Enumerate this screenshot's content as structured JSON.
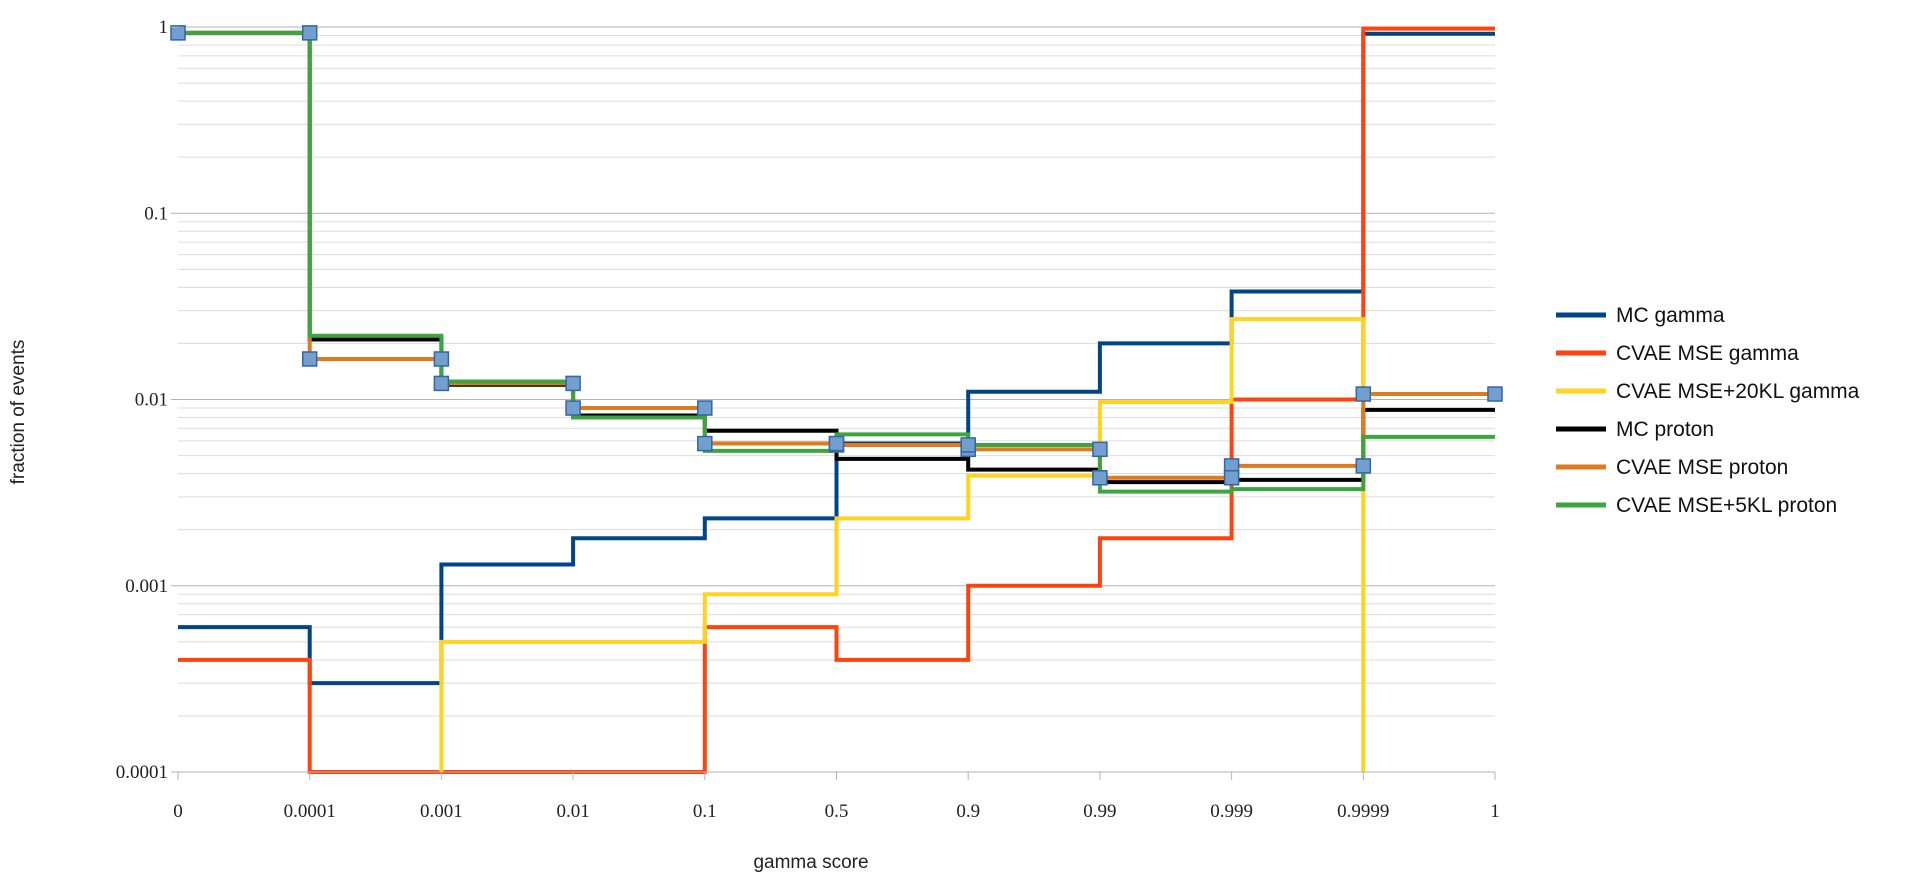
{
  "chart_data": {
    "type": "line",
    "step": "post",
    "xlabel": "gamma score",
    "ylabel": "fraction of events",
    "x_categories": [
      "0",
      "0.0001",
      "0.001",
      "0.01",
      "0.1",
      "0.5",
      "0.9",
      "0.99",
      "0.999",
      "0.9999",
      "1"
    ],
    "yscale": "log",
    "ylim": [
      0.0001,
      1
    ],
    "y_ticks": [
      "0.0001",
      "0.001",
      "0.01",
      "0.1",
      "1"
    ],
    "grid": true,
    "legend_position": "right",
    "series": [
      {
        "name": "MC gamma",
        "color": "#004586",
        "markers": false,
        "values": [
          0.0006,
          0.0003,
          0.0013,
          0.0018,
          0.0023,
          0.0058,
          0.011,
          0.02,
          0.038,
          0.92
        ]
      },
      {
        "name": "CVAE MSE gamma",
        "color": "#ff420e",
        "markers": false,
        "values": [
          0.0004,
          0.0001,
          0.0001,
          0.0001,
          0.0006,
          0.0004,
          0.001,
          0.0018,
          0.01,
          0.98
        ]
      },
      {
        "name": "CVAE MSE+20KL gamma",
        "color": "#ffd320",
        "markers": false,
        "values": [
          null,
          null,
          0.0005,
          0.0005,
          0.0009,
          0.0023,
          0.0039,
          0.0097,
          0.027,
          null
        ]
      },
      {
        "name": "MC proton",
        "color": "#000000",
        "markers": false,
        "values": [
          0.93,
          0.021,
          0.012,
          0.0082,
          0.0068,
          0.0048,
          0.0042,
          0.0036,
          0.0037,
          0.0088
        ]
      },
      {
        "name": "CVAE MSE proton",
        "color": "#e07a1f",
        "markers": true,
        "marker_color": "#729fcf",
        "values": [
          0.93,
          0.0165,
          0.0122,
          0.009,
          0.0058,
          0.0057,
          0.0054,
          0.0038,
          0.0044,
          0.0107
        ]
      },
      {
        "name": "CVAE MSE+5KL proton",
        "color": "#3da53d",
        "markers": false,
        "values": [
          0.93,
          0.022,
          0.0125,
          0.008,
          0.0053,
          0.0065,
          0.0057,
          0.0032,
          0.0033,
          0.0063
        ]
      }
    ]
  }
}
